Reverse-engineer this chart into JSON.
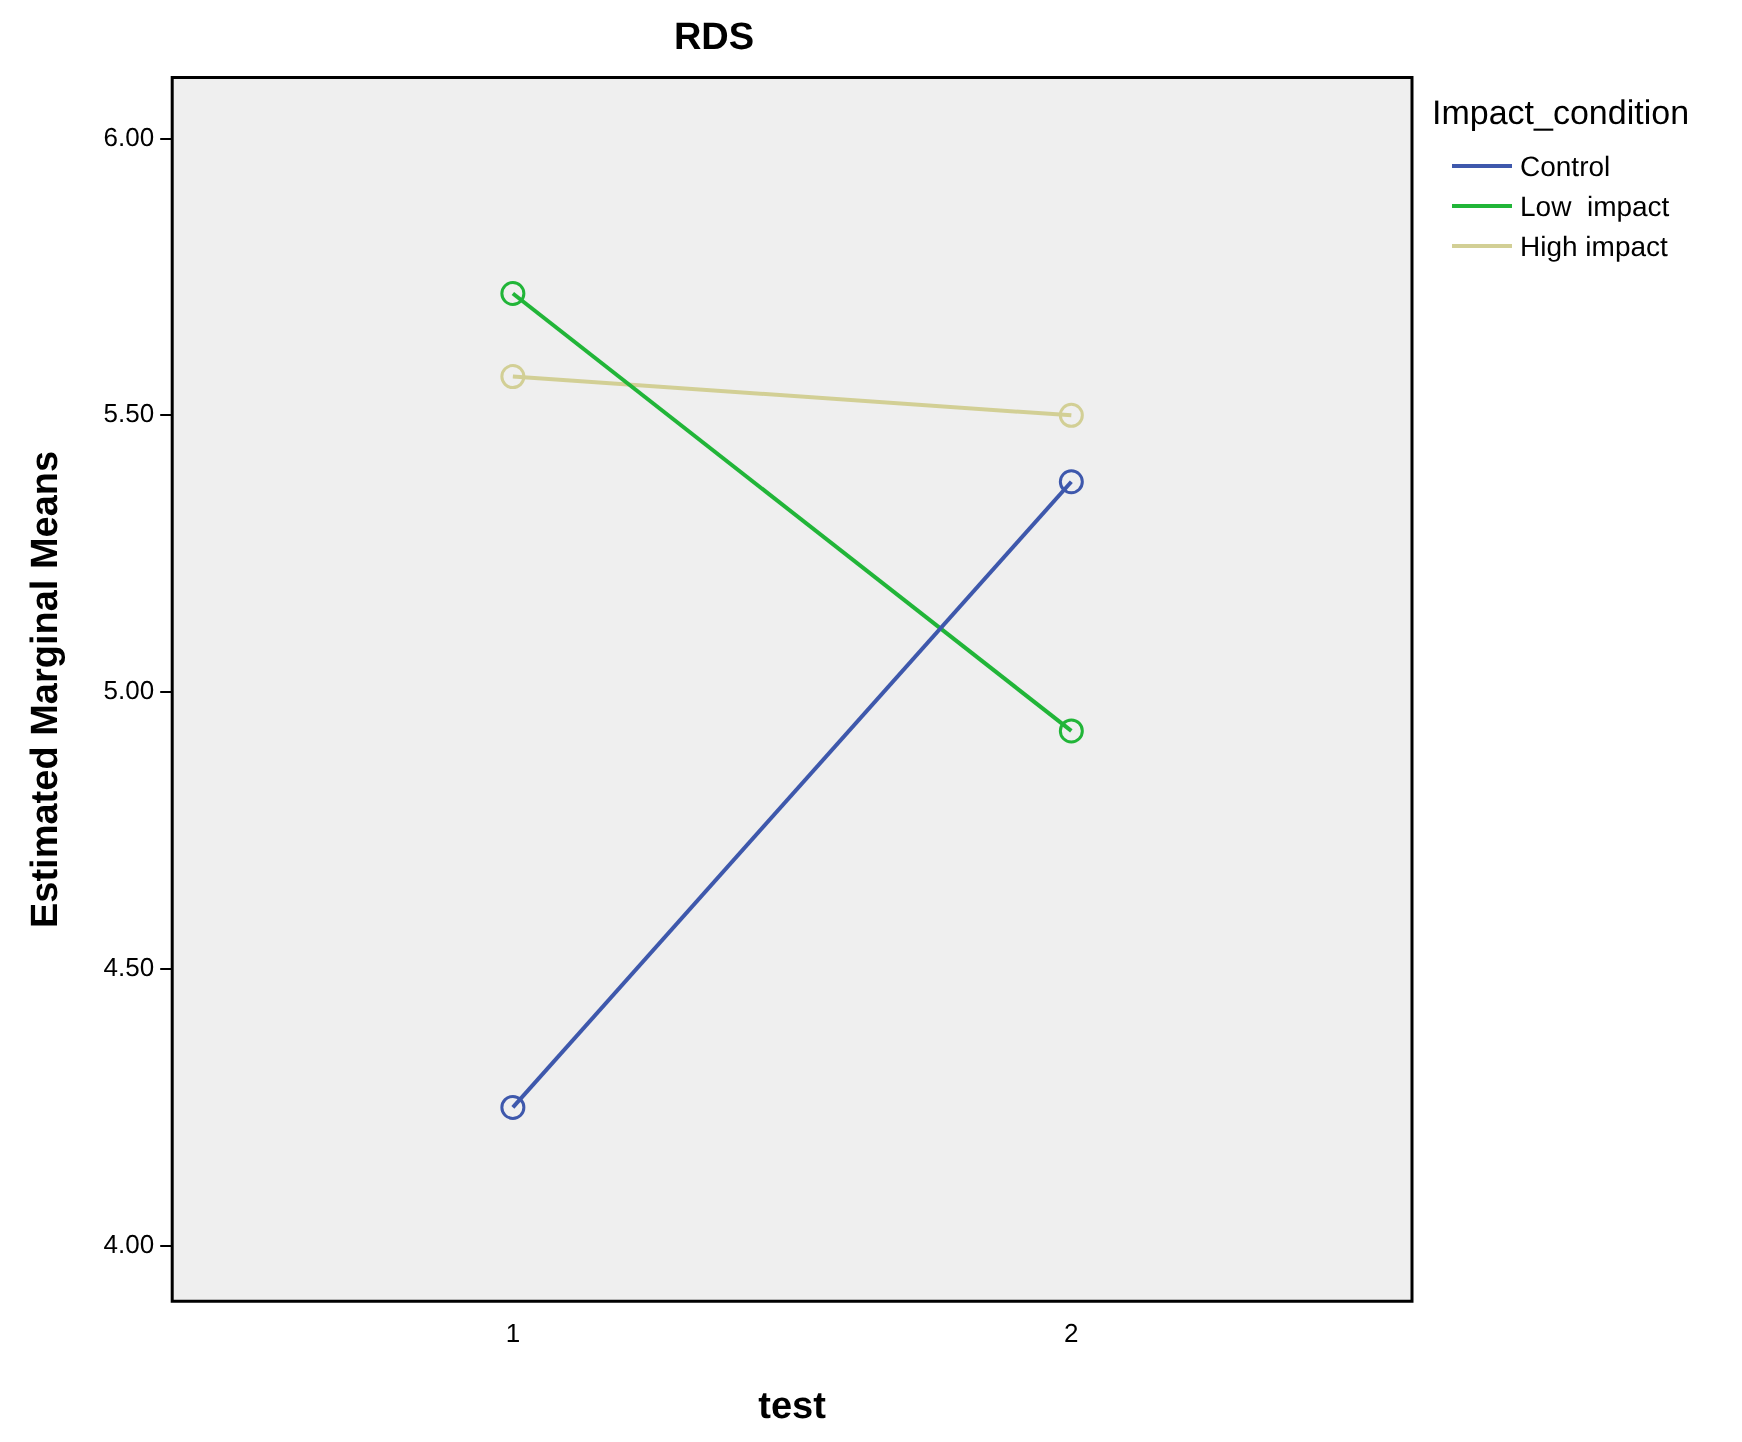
{
  "chart_data": {
    "type": "line",
    "title": "RDS",
    "xlabel": "test",
    "ylabel": "Estimated Marginal Means",
    "legend_title": "Impact_condition",
    "categories": [
      "1",
      "2"
    ],
    "series": [
      {
        "name": "Control",
        "color": "#3e58ac",
        "values": [
          4.25,
          5.38
        ]
      },
      {
        "name": "Low  impact",
        "color": "#21b538",
        "values": [
          5.72,
          4.93
        ]
      },
      {
        "name": "High impact",
        "color": "#d2cf95",
        "values": [
          5.57,
          5.5
        ]
      }
    ],
    "ylim": [
      3.9,
      6.11
    ],
    "yticks": [
      {
        "value": 4,
        "label": "4.00"
      },
      {
        "value": 4.5,
        "label": "4.50"
      },
      {
        "value": 5,
        "label": "5.00"
      },
      {
        "value": 5.5,
        "label": "5.50"
      },
      {
        "value": 6,
        "label": "6.00"
      }
    ],
    "grid": false,
    "legend": "top right",
    "marker": "circle",
    "line_style": "solid"
  }
}
